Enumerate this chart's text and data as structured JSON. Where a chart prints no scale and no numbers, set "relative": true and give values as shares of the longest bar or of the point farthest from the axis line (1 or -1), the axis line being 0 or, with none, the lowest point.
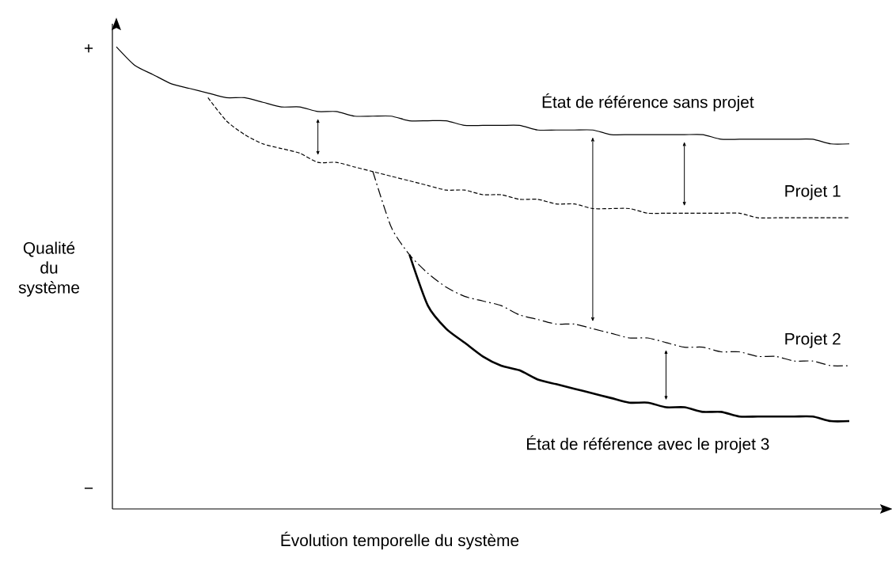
{
  "chart_data": {
    "type": "line",
    "relative": true,
    "xlabel": "Évolution temporelle du système",
    "ylabel": "Qualité du système",
    "annotations": [
      "+",
      "−"
    ],
    "categories": [
      null,
      null,
      null,
      null,
      null,
      null,
      null,
      null,
      null,
      null,
      null,
      null,
      null,
      null,
      null,
      null,
      null,
      null,
      null,
      null,
      null,
      null,
      null,
      null,
      null,
      null,
      null,
      null,
      null,
      null,
      null,
      null,
      null,
      null,
      null,
      null,
      null,
      null,
      null,
      null,
      null
    ],
    "series": [
      {
        "name": "État de référence sans projet",
        "color": "#000000",
        "line_style": "solid",
        "values": [
          1.0,
          0.96,
          0.94,
          0.92,
          0.91,
          0.9,
          0.89,
          0.89,
          0.88,
          0.87,
          0.87,
          0.86,
          0.86,
          0.85,
          0.85,
          0.85,
          0.84,
          0.84,
          0.84,
          0.83,
          0.83,
          0.83,
          0.83,
          0.82,
          0.82,
          0.82,
          0.82,
          0.81,
          0.81,
          0.81,
          0.81,
          0.81,
          0.81,
          0.8,
          0.8,
          0.8,
          0.8,
          0.8,
          0.8,
          0.79,
          0.79
        ]
      },
      {
        "name": "Projet 1",
        "color": "#000000",
        "line_style": "dashed",
        "values": [
          null,
          null,
          null,
          null,
          null,
          0.89,
          0.84,
          0.81,
          0.79,
          0.78,
          0.77,
          0.75,
          0.75,
          0.74,
          0.73,
          0.72,
          0.71,
          0.7,
          0.69,
          0.69,
          0.68,
          0.68,
          0.67,
          0.67,
          0.66,
          0.66,
          0.65,
          0.65,
          0.65,
          0.64,
          0.64,
          0.64,
          0.64,
          0.64,
          0.64,
          0.63,
          0.63,
          0.63,
          0.63,
          0.63,
          0.63
        ]
      },
      {
        "name": "Projet 2",
        "color": "#000000",
        "line_style": "dashdot",
        "values": [
          null,
          null,
          null,
          null,
          null,
          null,
          null,
          null,
          null,
          null,
          null,
          null,
          null,
          null,
          0.73,
          0.61,
          0.55,
          0.51,
          0.48,
          0.46,
          0.45,
          0.44,
          0.42,
          0.41,
          0.4,
          0.4,
          0.39,
          0.38,
          0.37,
          0.37,
          0.36,
          0.35,
          0.35,
          0.34,
          0.34,
          0.33,
          0.33,
          0.32,
          0.32,
          0.31,
          0.31
        ]
      },
      {
        "name": "État de référence avec le projet 3",
        "color": "#000000",
        "line_style": "solid",
        "values": [
          null,
          null,
          null,
          null,
          null,
          null,
          null,
          null,
          null,
          null,
          null,
          null,
          null,
          null,
          null,
          null,
          0.55,
          0.44,
          0.39,
          0.36,
          0.33,
          0.31,
          0.3,
          0.28,
          0.27,
          0.26,
          0.25,
          0.24,
          0.23,
          0.23,
          0.22,
          0.22,
          0.21,
          0.21,
          0.2,
          0.2,
          0.2,
          0.2,
          0.2,
          0.19,
          0.19
        ]
      }
    ]
  }
}
